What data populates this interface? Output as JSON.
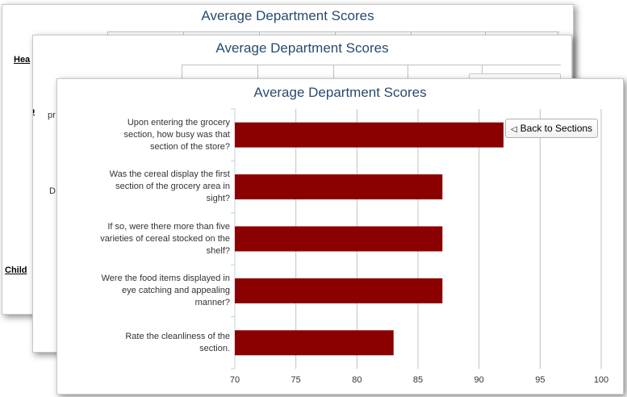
{
  "chart_data": {
    "type": "bar",
    "orientation": "horizontal",
    "title": "Average Department Scores",
    "categories": [
      "Upon entering the grocery section, how busy was that section of the store?",
      "Was the cereal display the first section of the grocery area in sight?",
      "If so, were there more than five varieties of cereal stocked on the shelf?",
      "Were the food items displayed in eye catching and appealing manner?",
      "Rate the cleanliness of the section."
    ],
    "category_lines": [
      [
        "Upon entering the grocery",
        "section, how busy was that",
        "section of the store?"
      ],
      [
        "Was the cereal display the first",
        "section of the grocery area in",
        "sight?"
      ],
      [
        "If so, were there more than five",
        "varieties of cereal stocked on the",
        "shelf?"
      ],
      [
        "Were the food items displayed in",
        "eye catching and appealing",
        "manner?"
      ],
      [
        "Rate the cleanliness of the",
        "section."
      ]
    ],
    "values": [
      92,
      87,
      87,
      87,
      83
    ],
    "xlim": [
      70,
      100
    ],
    "ticks": [
      70,
      75,
      80,
      85,
      90,
      95,
      100
    ],
    "grid": true,
    "bar_color": "#8b0000",
    "xlabel": "",
    "ylabel": ""
  },
  "back_button": {
    "label": "Back to Sections",
    "icon": "triangle-left-icon"
  },
  "background_cards": {
    "back_title": "Average Department Scores",
    "mid_title": "Average Department Scores",
    "peek_texts": [
      "Hea",
      "Sp",
      "pr",
      "D",
      "Child"
    ]
  },
  "colors": {
    "title": "#274b6d",
    "bar": "#8b0000",
    "grid": "#c0c0c0"
  }
}
